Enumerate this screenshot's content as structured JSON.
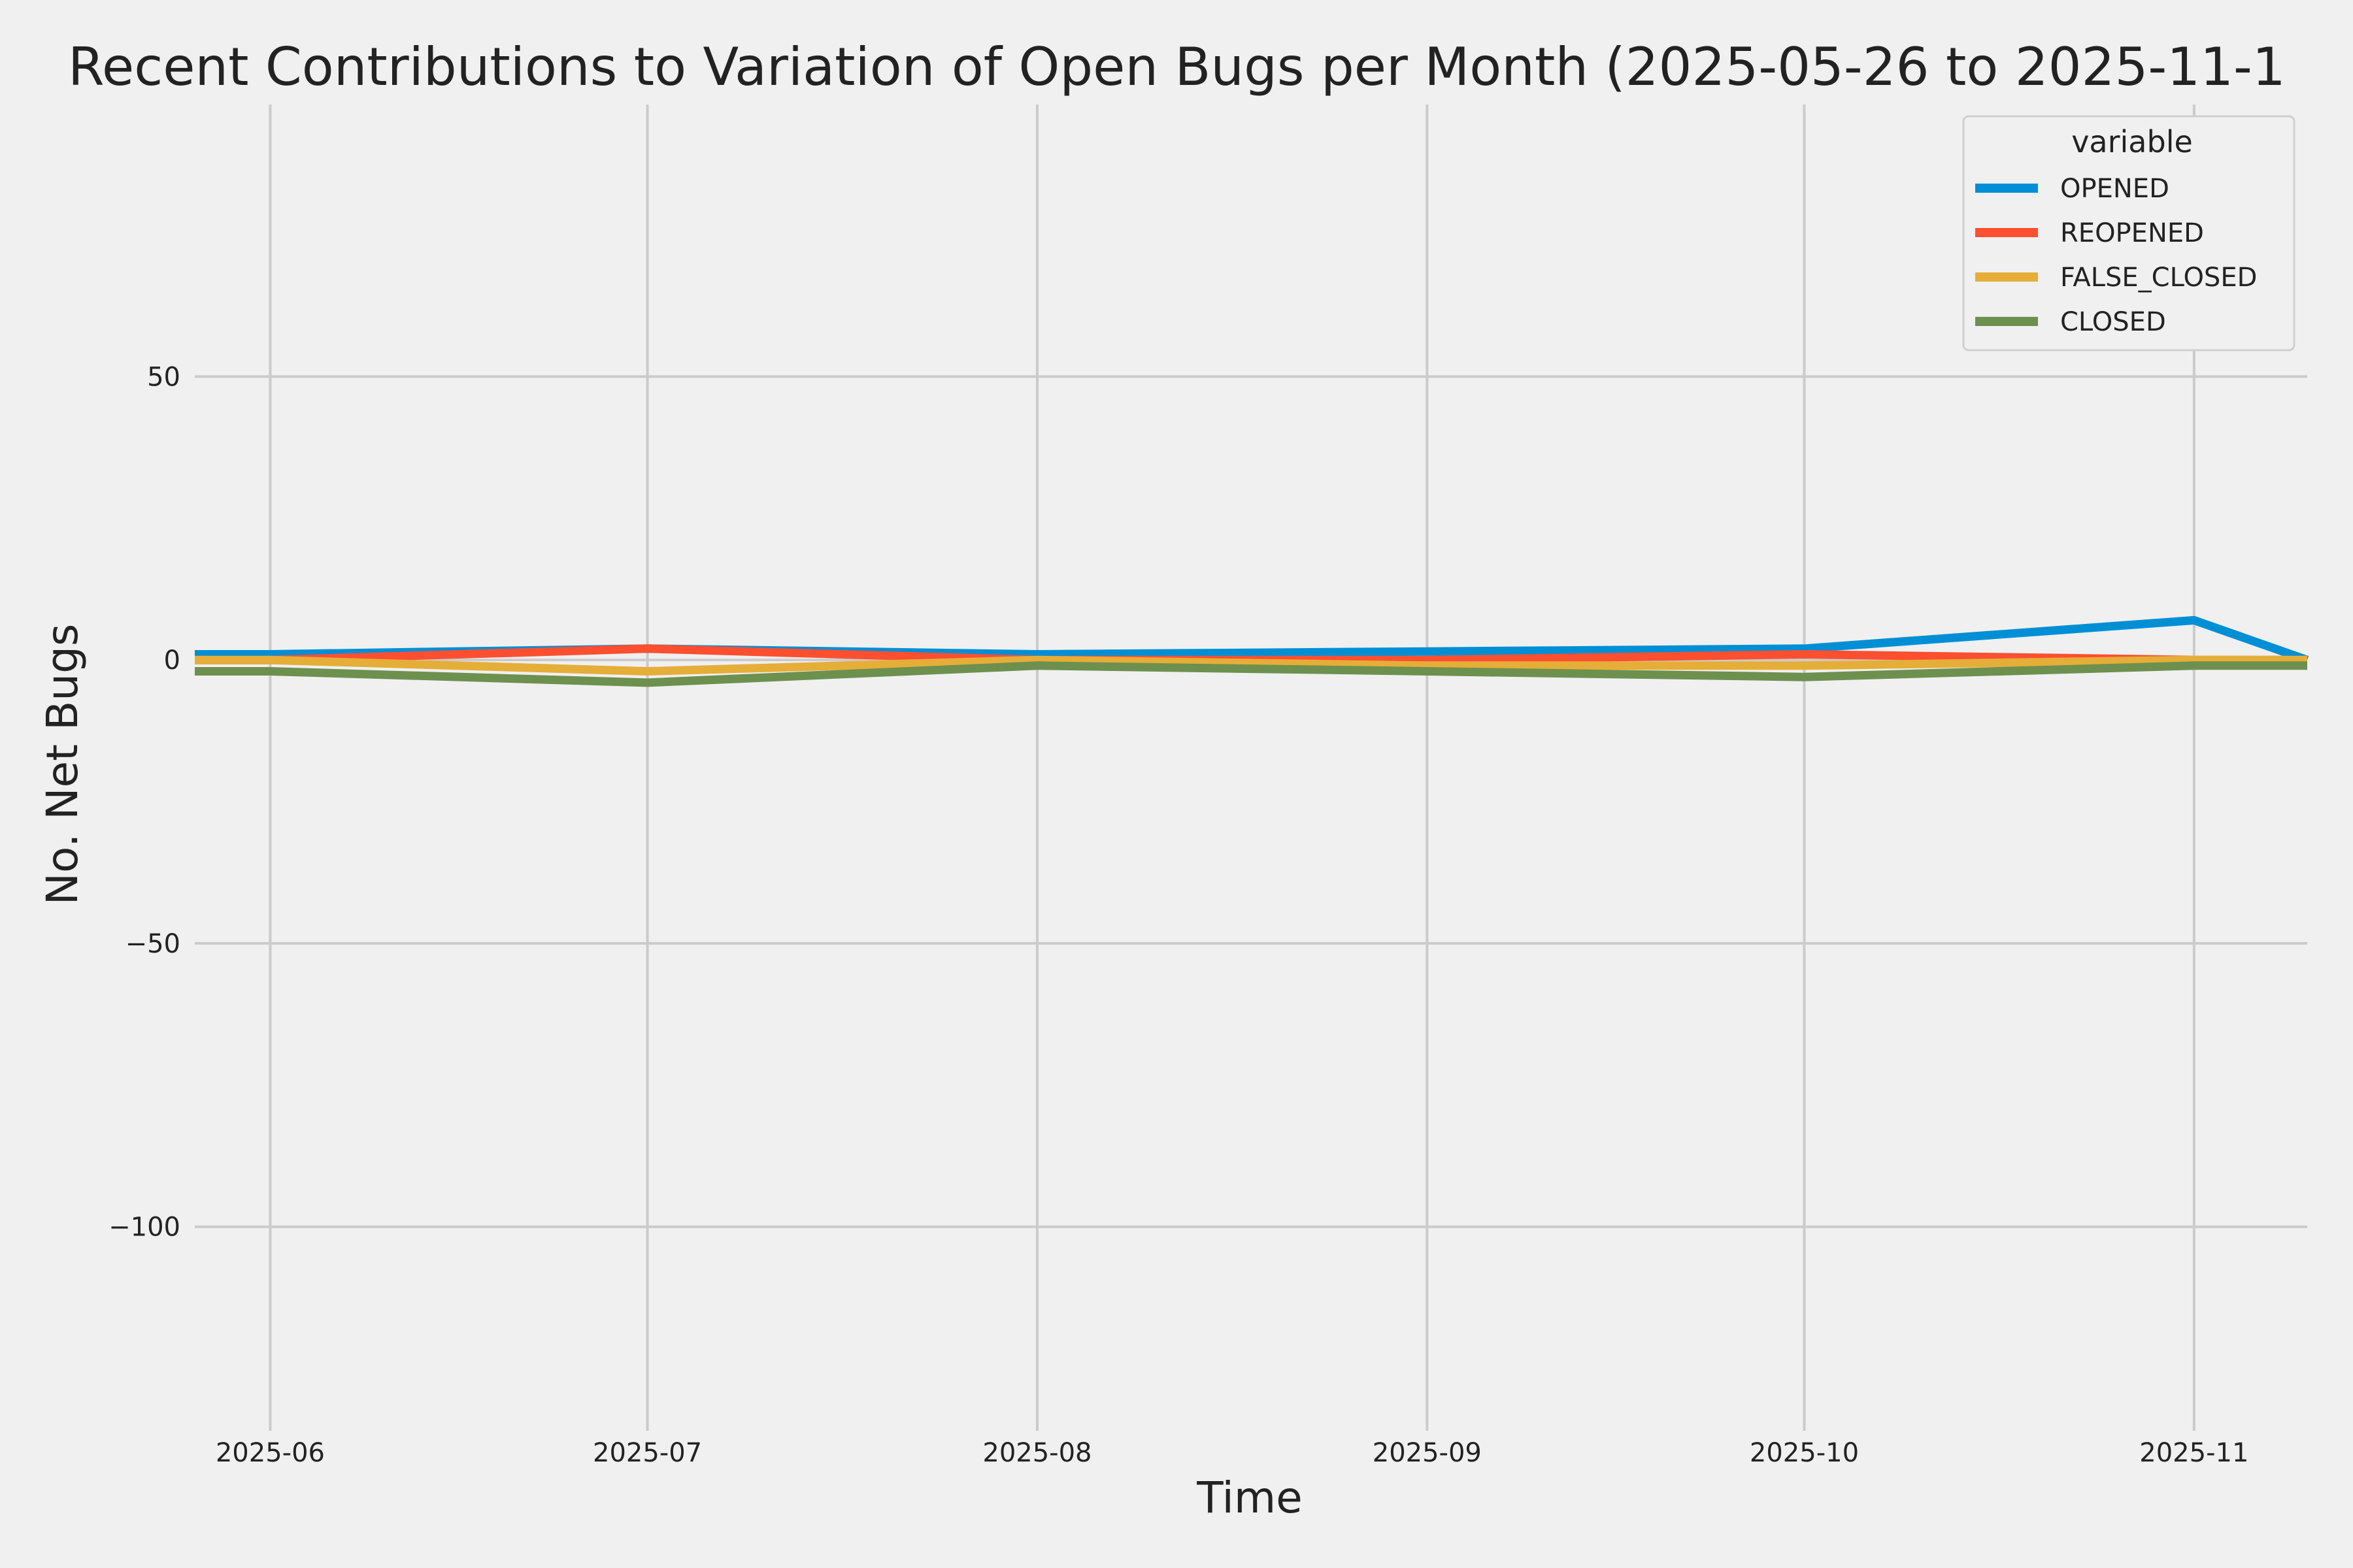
{
  "chart_data": {
    "type": "line",
    "title": "Recent Contributions to Variation of Open Bugs per Month (2025-05-26 to 2025-11-1",
    "xlabel": "Time",
    "ylabel": "No. Net Bugs",
    "x": [
      "2025-05-26",
      "2025-06-01",
      "2025-07-01",
      "2025-08-01",
      "2025-09-01",
      "2025-10-01",
      "2025-11-01",
      "2025-11-10"
    ],
    "xlim": [
      "2025-05-26",
      "2025-11-10"
    ],
    "ylim": [
      -136,
      98
    ],
    "x_ticks": [
      "2025-06",
      "2025-07",
      "2025-08",
      "2025-09",
      "2025-10",
      "2025-11"
    ],
    "y_ticks": [
      50,
      0,
      -50,
      -100
    ],
    "y_tick_labels": [
      "50",
      "0",
      "−50",
      "−100"
    ],
    "grid": true,
    "legend_title": "variable",
    "legend_position": "top-right",
    "series": [
      {
        "name": "OPENED",
        "color": "#008fd5",
        "values": [
          1,
          1,
          2,
          1,
          1.5,
          2,
          7,
          0
        ]
      },
      {
        "name": "REOPENED",
        "color": "#fc4f30",
        "values": [
          0,
          0,
          2,
          0,
          0,
          1,
          0,
          0
        ]
      },
      {
        "name": "FALSE_CLOSED",
        "color": "#e5ae38",
        "values": [
          0,
          0,
          -2,
          0,
          -1,
          -1,
          0,
          0
        ]
      },
      {
        "name": "CLOSED",
        "color": "#6d904f",
        "values": [
          -2,
          -2,
          -4,
          -1,
          -2,
          -3,
          -1,
          -1
        ]
      }
    ]
  }
}
